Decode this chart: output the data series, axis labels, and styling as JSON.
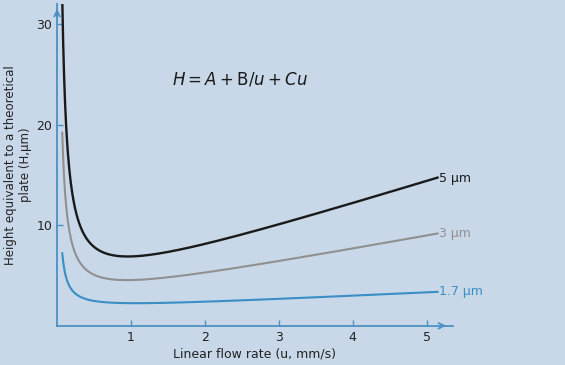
{
  "xlabel": "Linear flow rate (u, mm/s)",
  "ylabel": "Height equivalent to a theoretical\nplate (H,μm)",
  "background_color": "#c8d8e8",
  "axis_color": "#4a90c4",
  "xlim": [
    0,
    5.35
  ],
  "ylim": [
    0,
    32
  ],
  "xticks": [
    1,
    2,
    3,
    4,
    5
  ],
  "yticks": [
    10,
    20,
    30
  ],
  "u_start": 0.07,
  "u_end": 5.15,
  "curves": [
    {
      "label": "5 μm",
      "color": "#1a1a1a",
      "A": 2.5,
      "B": 2.1,
      "C": 2.3,
      "lw": 1.7
    },
    {
      "label": "3 μm",
      "color": "#909090",
      "A": 2.0,
      "B": 1.2,
      "C": 1.35,
      "lw": 1.5
    },
    {
      "label": "1.7 μm",
      "color": "#3a8ec4",
      "A": 1.5,
      "B": 0.4,
      "C": 0.35,
      "lw": 1.5
    }
  ],
  "formula_x": 1.55,
  "formula_y": 24.5,
  "formula_fontsize": 12,
  "tick_labelsize": 9,
  "xlabel_fontsize": 9,
  "ylabel_fontsize": 8.5,
  "label_fontsize": 9
}
